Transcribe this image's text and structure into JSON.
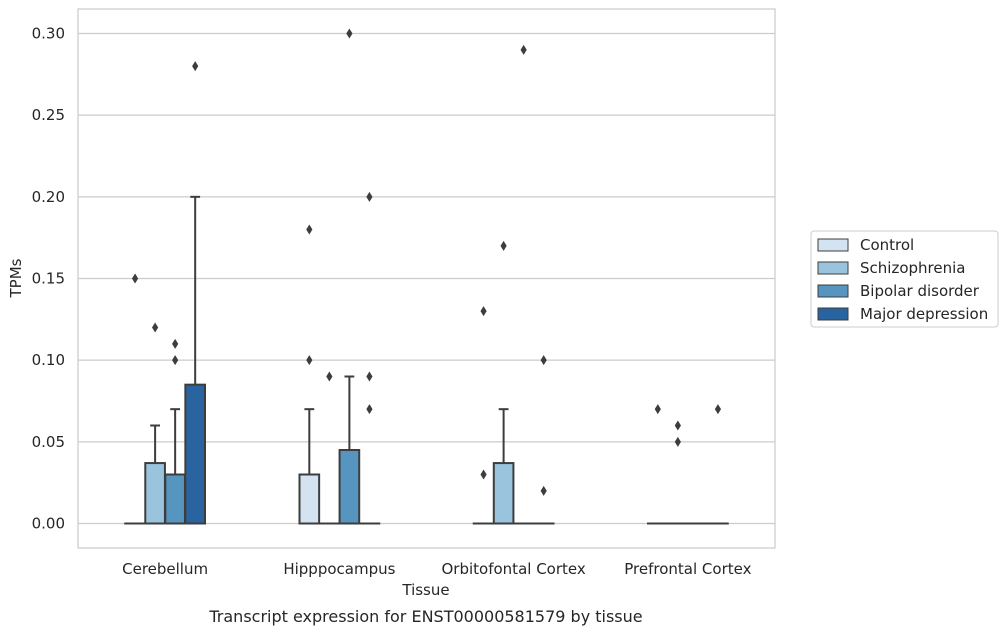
{
  "chart_data": {
    "type": "box",
    "caption": "Transcript expression for ENST00000581579 by tissue",
    "xlabel": "Tissue",
    "ylabel": "TPMs",
    "ylim": [
      -0.015,
      0.315
    ],
    "yticks": [
      "0.00",
      "0.05",
      "0.10",
      "0.15",
      "0.20",
      "0.25",
      "0.30"
    ],
    "ytick_values": [
      0,
      0.05,
      0.1,
      0.15,
      0.2,
      0.25,
      0.3
    ],
    "grid": "horizontal",
    "legend_position": "right",
    "categories": [
      "Cerebellum",
      "Hipppocampus",
      "Orbitofontal Cortex",
      "Prefrontal Cortex"
    ],
    "series": [
      {
        "name": "Control",
        "color": "#d3e3f2",
        "boxes": [
          {
            "q1": 0,
            "median": 0,
            "q3": 0,
            "whislo": 0,
            "whishi": 0,
            "fliers": [
              0.15
            ]
          },
          {
            "q1": 0,
            "median": 0,
            "q3": 0.03,
            "whislo": 0,
            "whishi": 0.07,
            "fliers": [
              0.1,
              0.18
            ]
          },
          {
            "q1": 0,
            "median": 0,
            "q3": 0,
            "whislo": 0,
            "whishi": 0,
            "fliers": [
              0.03,
              0.13
            ]
          },
          {
            "q1": 0,
            "median": 0,
            "q3": 0,
            "whislo": 0,
            "whishi": 0,
            "fliers": [
              0.07
            ]
          }
        ]
      },
      {
        "name": "Schizophrenia",
        "color": "#9ac4dd",
        "boxes": [
          {
            "q1": 0,
            "median": 0,
            "q3": 0.037,
            "whislo": 0,
            "whishi": 0.06,
            "fliers": [
              0.12
            ]
          },
          {
            "q1": 0,
            "median": 0,
            "q3": 0,
            "whislo": 0,
            "whishi": 0,
            "fliers": [
              0.09
            ]
          },
          {
            "q1": 0,
            "median": 0,
            "q3": 0.037,
            "whislo": 0,
            "whishi": 0.07,
            "fliers": [
              0.17
            ]
          },
          {
            "q1": 0,
            "median": 0,
            "q3": 0,
            "whislo": 0,
            "whishi": 0,
            "fliers": [
              0.05,
              0.06
            ]
          }
        ]
      },
      {
        "name": "Bipolar disorder",
        "color": "#5795c1",
        "boxes": [
          {
            "q1": 0,
            "median": 0,
            "q3": 0.03,
            "whislo": 0,
            "whishi": 0.07,
            "fliers": [
              0.1,
              0.11
            ]
          },
          {
            "q1": 0,
            "median": 0,
            "q3": 0.045,
            "whislo": 0,
            "whishi": 0.09,
            "fliers": [
              0.3
            ]
          },
          {
            "q1": 0,
            "median": 0,
            "q3": 0,
            "whislo": 0,
            "whishi": 0,
            "fliers": [
              0.29
            ]
          },
          {
            "q1": 0,
            "median": 0,
            "q3": 0,
            "whislo": 0,
            "whishi": 0,
            "fliers": []
          }
        ]
      },
      {
        "name": "Major depression",
        "color": "#2a64a0",
        "boxes": [
          {
            "q1": 0,
            "median": 0,
            "q3": 0.085,
            "whislo": 0,
            "whishi": 0.2,
            "fliers": [
              0.28
            ]
          },
          {
            "q1": 0,
            "median": 0,
            "q3": 0,
            "whislo": 0,
            "whishi": 0,
            "fliers": [
              0.07,
              0.09,
              0.2
            ]
          },
          {
            "q1": 0,
            "median": 0,
            "q3": 0,
            "whislo": 0,
            "whishi": 0,
            "fliers": [
              0.02,
              0.1
            ]
          },
          {
            "q1": 0,
            "median": 0,
            "q3": 0,
            "whislo": 0,
            "whishi": 0,
            "fliers": [
              0.07
            ]
          }
        ]
      }
    ]
  }
}
